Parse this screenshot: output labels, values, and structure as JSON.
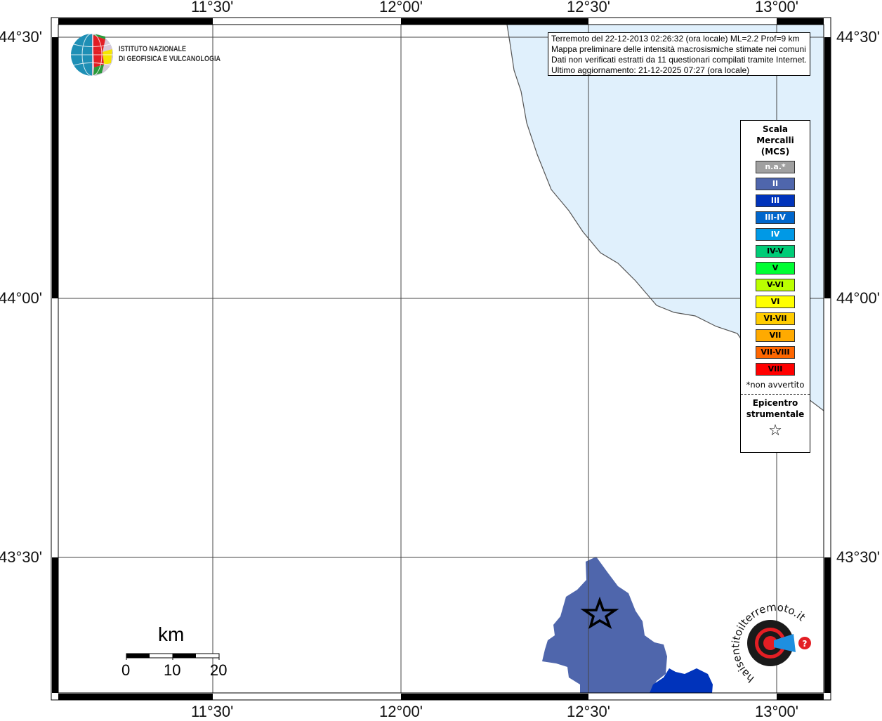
{
  "map": {
    "longitude_labels": [
      "11°30'",
      "12°00'",
      "12°30'",
      "13°00'"
    ],
    "latitude_labels": [
      "44°30'",
      "44°00'",
      "43°30'"
    ],
    "colors": {
      "sea": "#e0f0fc",
      "land": "#ffffff",
      "intensity_II": "#4f66ac",
      "intensity_III": "#0033bb"
    }
  },
  "info_box": {
    "lines": [
      "Terremoto del 22-12-2013 02:26:32 (ora locale) ML=2.2 Prof=9 km",
      "Mappa preliminare delle intensità macrosismiche stimate nei comuni",
      "Dati non verificati estratti da 11 questionari compilati tramite Internet.",
      "Ultimo aggiornamento: 21-12-2025 07:27 (ora locale)"
    ]
  },
  "logo_ingv": {
    "line1": "ISTITUTO NAZIONALE",
    "line2": "DI GEOFISICA E VULCANOLOGIA"
  },
  "logo_hsit": {
    "text": "www.haisentitoilterremoto.it"
  },
  "legend": {
    "title_lines": [
      "Scala",
      "Mercalli",
      "(MCS)"
    ],
    "items": [
      {
        "label": "n.a.*",
        "color": "#a0a0a0",
        "text_color": "#ffffff"
      },
      {
        "label": "II",
        "color": "#4f66ac",
        "text_color": "#ffffff"
      },
      {
        "label": "III",
        "color": "#0033bb",
        "text_color": "#ffffff"
      },
      {
        "label": "III-IV",
        "color": "#0066cc",
        "text_color": "#ffffff"
      },
      {
        "label": "IV",
        "color": "#0099e6",
        "text_color": "#ffffff"
      },
      {
        "label": "IV-V",
        "color": "#00cc77",
        "text_color": "#000000"
      },
      {
        "label": "V",
        "color": "#00ff33",
        "text_color": "#000000"
      },
      {
        "label": "V-VI",
        "color": "#bbff00",
        "text_color": "#000000"
      },
      {
        "label": "VI",
        "color": "#ffff00",
        "text_color": "#000000"
      },
      {
        "label": "VI-VII",
        "color": "#ffcc00",
        "text_color": "#000000"
      },
      {
        "label": "VII",
        "color": "#ffaa00",
        "text_color": "#000000"
      },
      {
        "label": "VII-VIII",
        "color": "#ff6600",
        "text_color": "#000000"
      },
      {
        "label": "VIII",
        "color": "#ff0000",
        "text_color": "#000000"
      }
    ],
    "note": "*non avvertito",
    "epicenter_lines": [
      "Epicentro",
      "strumentale"
    ],
    "epicenter_symbol": "☆"
  },
  "scale_bar": {
    "unit": "km",
    "ticks": [
      "0",
      "10",
      "20"
    ]
  }
}
